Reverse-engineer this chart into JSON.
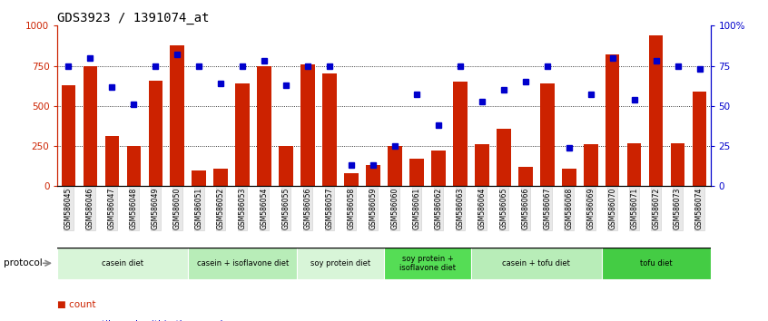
{
  "title": "GDS3923 / 1391074_at",
  "samples": [
    "GSM586045",
    "GSM586046",
    "GSM586047",
    "GSM586048",
    "GSM586049",
    "GSM586050",
    "GSM586051",
    "GSM586052",
    "GSM586053",
    "GSM586054",
    "GSM586055",
    "GSM586056",
    "GSM586057",
    "GSM586058",
    "GSM586059",
    "GSM586060",
    "GSM586061",
    "GSM586062",
    "GSM586063",
    "GSM586064",
    "GSM586065",
    "GSM586066",
    "GSM586067",
    "GSM586068",
    "GSM586069",
    "GSM586070",
    "GSM586071",
    "GSM586072",
    "GSM586073",
    "GSM586074"
  ],
  "counts": [
    630,
    750,
    310,
    248,
    660,
    880,
    100,
    110,
    640,
    750,
    250,
    760,
    700,
    80,
    130,
    250,
    170,
    220,
    650,
    260,
    360,
    120,
    640,
    110,
    260,
    820,
    270,
    940,
    270,
    590
  ],
  "percentiles": [
    75,
    80,
    62,
    51,
    75,
    82,
    75,
    64,
    75,
    78,
    63,
    75,
    75,
    13,
    13,
    25,
    57,
    38,
    75,
    53,
    60,
    65,
    75,
    24,
    57,
    80,
    54,
    78,
    75,
    73
  ],
  "groups": [
    {
      "label": "casein diet",
      "start": 0,
      "end": 5,
      "color": "#d8f5d8"
    },
    {
      "label": "casein + isoflavone diet",
      "start": 6,
      "end": 10,
      "color": "#b8edb8"
    },
    {
      "label": "soy protein diet",
      "start": 11,
      "end": 14,
      "color": "#d8f5d8"
    },
    {
      "label": "soy protein +\nisoflavone diet",
      "start": 15,
      "end": 18,
      "color": "#55dd55"
    },
    {
      "label": "casein + tofu diet",
      "start": 19,
      "end": 24,
      "color": "#b8edb8"
    },
    {
      "label": "tofu diet",
      "start": 25,
      "end": 29,
      "color": "#44cc44"
    }
  ],
  "bar_color": "#cc2200",
  "dot_color": "#0000cc",
  "ylim_left": [
    0,
    1000
  ],
  "ylim_right": [
    0,
    100
  ],
  "yticks_left": [
    0,
    250,
    500,
    750,
    1000
  ],
  "yticks_right": [
    0,
    25,
    50,
    75,
    100
  ],
  "grid_values": [
    250,
    500,
    750
  ],
  "title_fontsize": 10,
  "bg_color": "#ffffff",
  "protocol_label": "protocol"
}
